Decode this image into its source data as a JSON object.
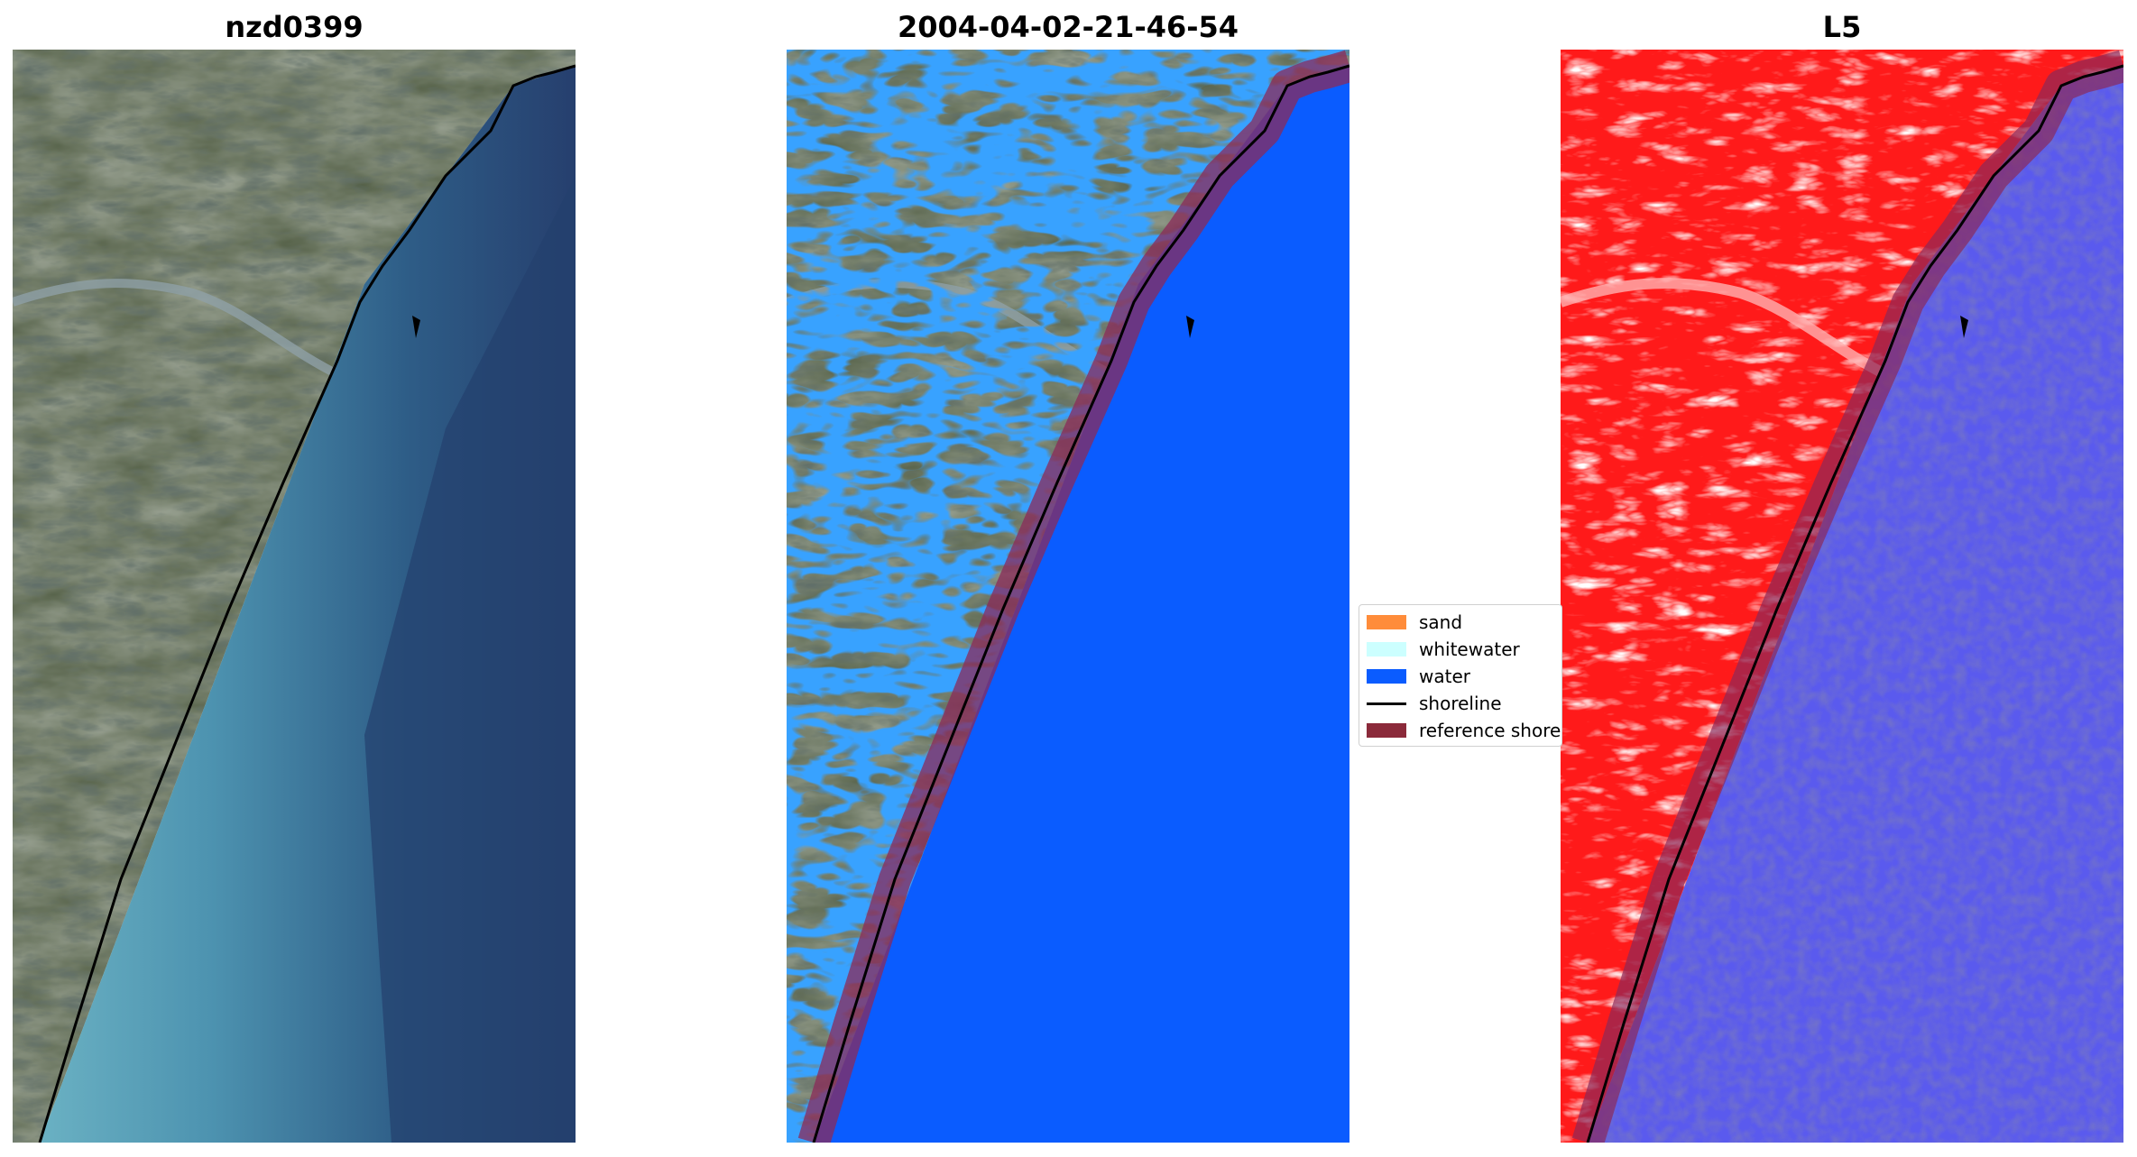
{
  "panels": [
    {
      "title": "nzd0399"
    },
    {
      "title": "2004-04-02-21-46-54"
    },
    {
      "title": "L5"
    }
  ],
  "legend": {
    "items": [
      {
        "label": "sand",
        "color": "#ff8c3a"
      },
      {
        "label": "whitewater",
        "color": "#ccffff"
      },
      {
        "label": "water",
        "color": "#0a5cff"
      },
      {
        "label": "shoreline",
        "color": "#000000"
      },
      {
        "label": "reference shoreline",
        "color": "#8b2a3a"
      }
    ]
  }
}
